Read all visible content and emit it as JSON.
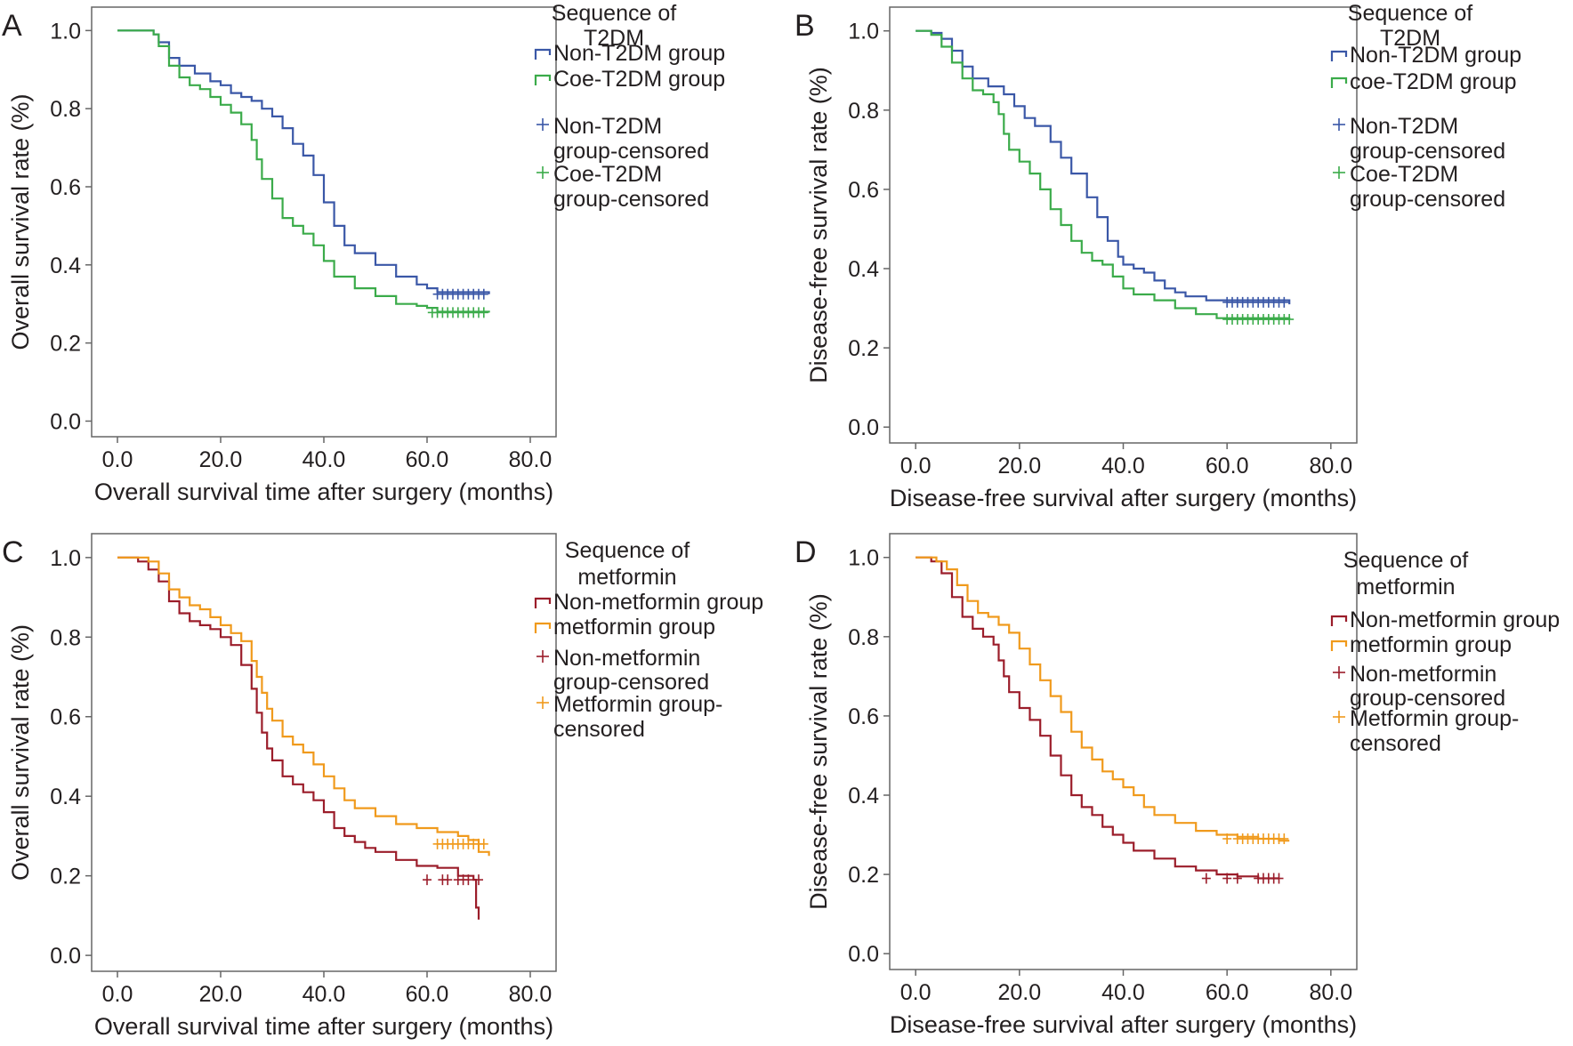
{
  "chart_data": [
    {
      "panel": "A",
      "type": "line",
      "xlabel": "Overall survival time after surgery (months)",
      "ylabel": "Overall survival rate (%)",
      "xlim": [
        -5,
        85
      ],
      "ylim": [
        -0.04,
        1.06
      ],
      "xticks": [
        "0.0",
        "20.0",
        "40.0",
        "60.0",
        "80.0"
      ],
      "yticks": [
        "0.0",
        "0.2",
        "0.4",
        "0.6",
        "0.8",
        "1.0"
      ],
      "legend_placement": "outside-right",
      "legend_title": [
        "Sequence of",
        "T2DM"
      ],
      "legend": [
        {
          "kind": "line",
          "series": 0,
          "text": [
            "Non-T2DM group"
          ]
        },
        {
          "kind": "line",
          "series": 1,
          "text": [
            "Coe-T2DM group"
          ]
        },
        {
          "kind": "censor",
          "series": 0,
          "text": [
            "Non-T2DM",
            "group-censored"
          ]
        },
        {
          "kind": "censor",
          "series": 1,
          "text": [
            "Coe-T2DM",
            "group-censored"
          ]
        }
      ],
      "series": [
        {
          "name": "Non-T2DM group",
          "color": "#3a57a7",
          "x": [
            0,
            7,
            8,
            10,
            12,
            15,
            18,
            20,
            22,
            24,
            26,
            28,
            30,
            32,
            34,
            36,
            38,
            40,
            42,
            44,
            46,
            50,
            54,
            58,
            60,
            62,
            72
          ],
          "y": [
            1.0,
            0.99,
            0.97,
            0.93,
            0.91,
            0.89,
            0.87,
            0.86,
            0.84,
            0.83,
            0.82,
            0.8,
            0.78,
            0.75,
            0.71,
            0.68,
            0.63,
            0.56,
            0.5,
            0.45,
            0.43,
            0.4,
            0.37,
            0.35,
            0.34,
            0.33,
            0.325
          ],
          "censored_x": [
            62,
            63,
            64,
            65,
            66,
            67,
            68,
            69,
            70,
            71
          ],
          "censored_y": 0.325
        },
        {
          "name": "Coe-T2DM group",
          "color": "#3bab4a",
          "x": [
            0,
            7,
            8,
            10,
            12,
            14,
            16,
            18,
            20,
            22,
            24,
            26,
            27,
            28,
            30,
            32,
            34,
            36,
            38,
            40,
            42,
            46,
            50,
            54,
            58,
            60,
            62,
            72
          ],
          "y": [
            1.0,
            0.99,
            0.96,
            0.91,
            0.88,
            0.86,
            0.85,
            0.83,
            0.81,
            0.79,
            0.76,
            0.72,
            0.67,
            0.62,
            0.57,
            0.52,
            0.5,
            0.48,
            0.45,
            0.41,
            0.37,
            0.34,
            0.32,
            0.3,
            0.295,
            0.29,
            0.28,
            0.278
          ],
          "censored_x": [
            61,
            62,
            63,
            64,
            65,
            66,
            67,
            68,
            69,
            70,
            71
          ],
          "censored_y": 0.278
        }
      ]
    },
    {
      "panel": "B",
      "type": "line",
      "xlabel": "Disease-free survival after surgery (months)",
      "ylabel": "Disease-free survival rate (%)",
      "xlim": [
        -5,
        85
      ],
      "ylim": [
        -0.04,
        1.06
      ],
      "xticks": [
        "0.0",
        "20.0",
        "40.0",
        "60.0",
        "80.0"
      ],
      "yticks": [
        "0.0",
        "0.2",
        "0.4",
        "0.6",
        "0.8",
        "1.0"
      ],
      "legend_placement": "outside-right",
      "legend_title": [
        "Sequence of",
        "T2DM"
      ],
      "legend": [
        {
          "kind": "line",
          "series": 0,
          "text": [
            "Non-T2DM group"
          ]
        },
        {
          "kind": "line",
          "series": 1,
          "text": [
            "coe-T2DM group"
          ]
        },
        {
          "kind": "censor",
          "series": 0,
          "text": [
            "Non-T2DM",
            "group-censored"
          ]
        },
        {
          "kind": "censor",
          "series": 1,
          "text": [
            "Coe-T2DM",
            "group-censored"
          ]
        }
      ],
      "series": [
        {
          "name": "Non-T2DM group",
          "color": "#3a57a7",
          "x": [
            0,
            3,
            5,
            7,
            9,
            11,
            14,
            17,
            19,
            21,
            23,
            26,
            28,
            30,
            33,
            35,
            37,
            39,
            40,
            42,
            44,
            46,
            48,
            50,
            52,
            56,
            60,
            72
          ],
          "y": [
            1.0,
            0.995,
            0.98,
            0.95,
            0.91,
            0.88,
            0.86,
            0.84,
            0.81,
            0.78,
            0.76,
            0.72,
            0.68,
            0.64,
            0.58,
            0.53,
            0.47,
            0.43,
            0.41,
            0.4,
            0.39,
            0.37,
            0.35,
            0.34,
            0.33,
            0.32,
            0.32,
            0.31
          ],
          "censored_x": [
            60,
            61,
            62,
            63,
            64,
            65,
            66,
            67,
            68,
            69,
            70,
            71
          ],
          "censored_y": 0.315
        },
        {
          "name": "coe-T2DM group",
          "color": "#3bab4a",
          "x": [
            0,
            3,
            5,
            7,
            9,
            11,
            13,
            15,
            16,
            17,
            18,
            20,
            22,
            24,
            26,
            28,
            30,
            32,
            34,
            36,
            38,
            40,
            42,
            46,
            50,
            54,
            58,
            72
          ],
          "y": [
            1.0,
            0.99,
            0.96,
            0.92,
            0.88,
            0.85,
            0.84,
            0.82,
            0.79,
            0.74,
            0.7,
            0.67,
            0.64,
            0.6,
            0.55,
            0.51,
            0.47,
            0.44,
            0.42,
            0.41,
            0.38,
            0.35,
            0.335,
            0.32,
            0.3,
            0.285,
            0.275,
            0.272
          ],
          "censored_x": [
            60,
            61,
            62,
            63,
            64,
            65,
            66,
            67,
            68,
            69,
            70,
            71,
            72
          ],
          "censored_y": 0.272
        }
      ]
    },
    {
      "panel": "C",
      "type": "line",
      "xlabel": "Overall survival time after surgery (months)",
      "ylabel": "Overall survival rate (%)",
      "xlim": [
        -5,
        85
      ],
      "ylim": [
        -0.04,
        1.06
      ],
      "xticks": [
        "0.0",
        "20.0",
        "40.0",
        "60.0",
        "80.0"
      ],
      "yticks": [
        "0.0",
        "0.2",
        "0.4",
        "0.6",
        "0.8",
        "1.0"
      ],
      "legend_placement": "outside-right",
      "legend_title": [
        "Sequence of",
        "metformin"
      ],
      "legend": [
        {
          "kind": "line",
          "series": 0,
          "text": [
            "Non-metformin group"
          ]
        },
        {
          "kind": "line",
          "series": 1,
          "text": [
            "metformin group"
          ]
        },
        {
          "kind": "censor",
          "series": 0,
          "text": [
            "Non-metformin",
            "group-censored"
          ]
        },
        {
          "kind": "censor",
          "series": 1,
          "text": [
            "Metformin group-",
            "censored"
          ]
        }
      ],
      "series": [
        {
          "name": "Non-metformin group",
          "color": "#9b1d2a",
          "x": [
            0,
            4,
            6,
            8,
            10,
            12,
            14,
            16,
            18,
            20,
            22,
            24,
            26,
            27,
            28,
            29,
            30,
            32,
            34,
            36,
            38,
            40,
            42,
            44,
            46,
            48,
            50,
            54,
            58,
            62,
            66,
            69,
            69.5,
            70
          ],
          "y": [
            1.0,
            0.99,
            0.97,
            0.94,
            0.89,
            0.86,
            0.84,
            0.83,
            0.82,
            0.8,
            0.78,
            0.73,
            0.67,
            0.61,
            0.56,
            0.52,
            0.49,
            0.45,
            0.43,
            0.41,
            0.39,
            0.36,
            0.32,
            0.3,
            0.285,
            0.27,
            0.26,
            0.24,
            0.225,
            0.22,
            0.2,
            0.19,
            0.12,
            0.09
          ],
          "censored_x": [
            60,
            63,
            64,
            66,
            67,
            68,
            70
          ],
          "censored_y": 0.19
        },
        {
          "name": "metformin group",
          "color": "#f09a1c",
          "x": [
            0,
            6,
            8,
            10,
            12,
            14,
            16,
            18,
            20,
            22,
            24,
            26,
            27,
            28,
            29,
            30,
            32,
            34,
            36,
            38,
            40,
            42,
            44,
            46,
            50,
            54,
            58,
            62,
            66,
            68,
            70,
            72
          ],
          "y": [
            1.0,
            0.99,
            0.96,
            0.92,
            0.9,
            0.88,
            0.87,
            0.85,
            0.83,
            0.81,
            0.79,
            0.74,
            0.7,
            0.66,
            0.62,
            0.59,
            0.55,
            0.53,
            0.51,
            0.48,
            0.45,
            0.42,
            0.39,
            0.37,
            0.35,
            0.33,
            0.32,
            0.31,
            0.3,
            0.29,
            0.26,
            0.25
          ],
          "censored_x": [
            62,
            63,
            64,
            65,
            66,
            67,
            68,
            69,
            70,
            71
          ],
          "censored_y": 0.28
        }
      ]
    },
    {
      "panel": "D",
      "type": "line",
      "xlabel": "Disease-free survival after surgery (months)",
      "ylabel": "Disease-free survival rate (%)",
      "xlim": [
        -5,
        85
      ],
      "ylim": [
        -0.04,
        1.06
      ],
      "xticks": [
        "0.0",
        "20.0",
        "40.0",
        "60.0",
        "80.0"
      ],
      "yticks": [
        "0.0",
        "0.2",
        "0.4",
        "0.6",
        "0.8",
        "1.0"
      ],
      "legend_placement": "outside-right",
      "legend_title": [
        "Sequence of",
        "metformin"
      ],
      "legend": [
        {
          "kind": "line",
          "series": 0,
          "text": [
            "Non-metformin group"
          ]
        },
        {
          "kind": "line",
          "series": 1,
          "text": [
            "metformin group"
          ]
        },
        {
          "kind": "censor",
          "series": 0,
          "text": [
            "Non-metformin",
            "group-censored"
          ]
        },
        {
          "kind": "censor",
          "series": 1,
          "text": [
            "Metformin group-",
            "censored"
          ]
        }
      ],
      "series": [
        {
          "name": "Non-metformin group",
          "color": "#9b1d2a",
          "x": [
            0,
            3,
            5,
            7,
            9,
            11,
            13,
            15,
            16,
            17,
            18,
            20,
            22,
            24,
            26,
            28,
            30,
            32,
            34,
            36,
            38,
            40,
            42,
            46,
            50,
            54,
            58,
            62,
            66,
            70
          ],
          "y": [
            1.0,
            0.99,
            0.96,
            0.9,
            0.85,
            0.82,
            0.8,
            0.78,
            0.74,
            0.7,
            0.66,
            0.62,
            0.59,
            0.55,
            0.5,
            0.45,
            0.4,
            0.37,
            0.35,
            0.32,
            0.3,
            0.28,
            0.26,
            0.24,
            0.22,
            0.21,
            0.2,
            0.195,
            0.19,
            0.19
          ],
          "censored_x": [
            56,
            60,
            62,
            66,
            67,
            68,
            69,
            70
          ],
          "censored_y": 0.19
        },
        {
          "name": "metformin group",
          "color": "#f09a1c",
          "x": [
            0,
            4,
            6,
            8,
            10,
            12,
            14,
            16,
            18,
            20,
            22,
            24,
            26,
            28,
            30,
            32,
            34,
            36,
            38,
            40,
            42,
            44,
            46,
            50,
            54,
            58,
            62,
            66,
            70,
            72
          ],
          "y": [
            1.0,
            0.99,
            0.97,
            0.93,
            0.89,
            0.86,
            0.85,
            0.83,
            0.81,
            0.77,
            0.73,
            0.69,
            0.65,
            0.61,
            0.56,
            0.52,
            0.49,
            0.46,
            0.44,
            0.42,
            0.4,
            0.37,
            0.35,
            0.33,
            0.31,
            0.3,
            0.295,
            0.29,
            0.285,
            0.285
          ],
          "censored_x": [
            60,
            62,
            63,
            64,
            65,
            66,
            67,
            68,
            69,
            70,
            71
          ],
          "censored_y": 0.29
        }
      ]
    }
  ]
}
